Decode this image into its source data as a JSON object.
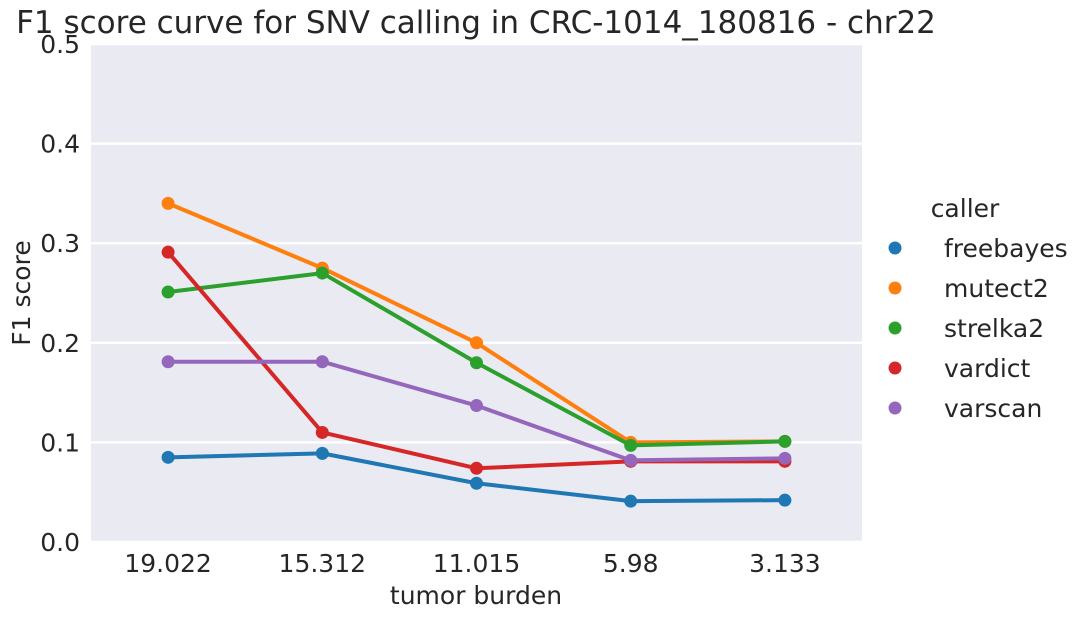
{
  "chart_data": {
    "type": "line",
    "title": "F1 score curve for SNV calling in CRC-1014_180816 - chr22",
    "xlabel": "tumor burden",
    "ylabel": "F1 score",
    "categories": [
      "19.022",
      "15.312",
      "11.015",
      "5.98",
      "3.133"
    ],
    "ylim": [
      0,
      0.5
    ],
    "yticks": [
      "0.0",
      "0.1",
      "0.2",
      "0.3",
      "0.4",
      "0.5"
    ],
    "grid": true,
    "legend_title": "caller",
    "legend_position": "right",
    "series": [
      {
        "name": "freebayes",
        "color": "#1f77b4",
        "values": [
          0.085,
          0.089,
          0.059,
          0.041,
          0.042
        ]
      },
      {
        "name": "mutect2",
        "color": "#ff7f0e",
        "values": [
          0.34,
          0.275,
          0.2,
          0.1,
          0.101
        ]
      },
      {
        "name": "strelka2",
        "color": "#2ca02c",
        "values": [
          0.251,
          0.27,
          0.18,
          0.097,
          0.101
        ]
      },
      {
        "name": "vardict",
        "color": "#d62728",
        "values": [
          0.291,
          0.11,
          0.074,
          0.081,
          0.081
        ]
      },
      {
        "name": "varscan",
        "color": "#9467bd",
        "values": [
          0.181,
          0.181,
          0.137,
          0.082,
          0.084
        ]
      }
    ]
  }
}
